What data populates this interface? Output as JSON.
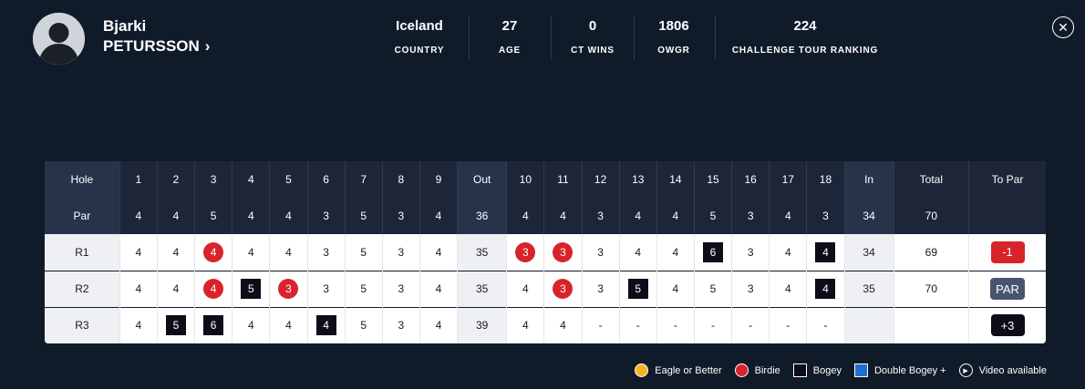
{
  "player": {
    "first_name": "Bjarki",
    "last_name": "PETURSSON",
    "chevron": "›"
  },
  "stats": [
    {
      "value": "Iceland",
      "label": "COUNTRY"
    },
    {
      "value": "27",
      "label": "AGE"
    },
    {
      "value": "0",
      "label": "CT WINS"
    },
    {
      "value": "1806",
      "label": "OWGR"
    },
    {
      "value": "224",
      "label": "CHALLENGE TOUR RANKING"
    }
  ],
  "close_glyph": "✕",
  "scorecard": {
    "hole_label": "Hole",
    "par_label": "Par",
    "holes": [
      "1",
      "2",
      "3",
      "4",
      "5",
      "6",
      "7",
      "8",
      "9",
      "Out",
      "10",
      "11",
      "12",
      "13",
      "14",
      "15",
      "16",
      "17",
      "18",
      "In",
      "Total",
      "To Par"
    ],
    "pars": [
      "4",
      "4",
      "5",
      "4",
      "4",
      "3",
      "5",
      "3",
      "4",
      "36",
      "4",
      "4",
      "3",
      "4",
      "4",
      "5",
      "3",
      "4",
      "3",
      "34",
      "70",
      ""
    ],
    "rounds": [
      {
        "label": "R1",
        "cells": [
          {
            "v": "4"
          },
          {
            "v": "4"
          },
          {
            "v": "4",
            "s": "birdie"
          },
          {
            "v": "4"
          },
          {
            "v": "4"
          },
          {
            "v": "3"
          },
          {
            "v": "5"
          },
          {
            "v": "3"
          },
          {
            "v": "4"
          },
          {
            "v": "35"
          },
          {
            "v": "3",
            "s": "birdie"
          },
          {
            "v": "3",
            "s": "birdie"
          },
          {
            "v": "3"
          },
          {
            "v": "4"
          },
          {
            "v": "4"
          },
          {
            "v": "6",
            "s": "bogey"
          },
          {
            "v": "3"
          },
          {
            "v": "4"
          },
          {
            "v": "4",
            "s": "bogey"
          },
          {
            "v": "34"
          },
          {
            "v": "69"
          },
          {
            "v": "-1",
            "s": "topar",
            "color": "#d8232a"
          }
        ]
      },
      {
        "label": "R2",
        "cells": [
          {
            "v": "4"
          },
          {
            "v": "4"
          },
          {
            "v": "4",
            "s": "birdie"
          },
          {
            "v": "5",
            "s": "bogey"
          },
          {
            "v": "3",
            "s": "birdie"
          },
          {
            "v": "3"
          },
          {
            "v": "5"
          },
          {
            "v": "3"
          },
          {
            "v": "4"
          },
          {
            "v": "35"
          },
          {
            "v": "4"
          },
          {
            "v": "3",
            "s": "birdie"
          },
          {
            "v": "3"
          },
          {
            "v": "5",
            "s": "bogey"
          },
          {
            "v": "4"
          },
          {
            "v": "5"
          },
          {
            "v": "3"
          },
          {
            "v": "4"
          },
          {
            "v": "4",
            "s": "bogey"
          },
          {
            "v": "35"
          },
          {
            "v": "70"
          },
          {
            "v": "PAR",
            "s": "topar",
            "color": "#4a5470"
          }
        ]
      },
      {
        "label": "R3",
        "cells": [
          {
            "v": "4"
          },
          {
            "v": "5",
            "s": "bogey"
          },
          {
            "v": "6",
            "s": "bogey"
          },
          {
            "v": "4"
          },
          {
            "v": "4"
          },
          {
            "v": "4",
            "s": "bogey"
          },
          {
            "v": "5"
          },
          {
            "v": "3"
          },
          {
            "v": "4"
          },
          {
            "v": "39"
          },
          {
            "v": "4"
          },
          {
            "v": "4"
          },
          {
            "v": "-"
          },
          {
            "v": "-"
          },
          {
            "v": "-"
          },
          {
            "v": "-"
          },
          {
            "v": "-"
          },
          {
            "v": "-"
          },
          {
            "v": "-"
          },
          {
            "v": ""
          },
          {
            "v": ""
          },
          {
            "v": "+3",
            "s": "topar",
            "color": "#0d0d1a"
          }
        ]
      }
    ]
  },
  "legend": [
    {
      "icon": "eagle",
      "label": "Eagle or Better",
      "color": "#f5b422"
    },
    {
      "icon": "birdie",
      "label": "Birdie",
      "color": "#d8232a"
    },
    {
      "icon": "bogey",
      "label": "Bogey",
      "color": "#0d0d1a"
    },
    {
      "icon": "dbl",
      "label": "Double Bogey +",
      "color": "#1e6fd0"
    },
    {
      "icon": "play",
      "label": "Video available",
      "glyph": "▶"
    }
  ]
}
